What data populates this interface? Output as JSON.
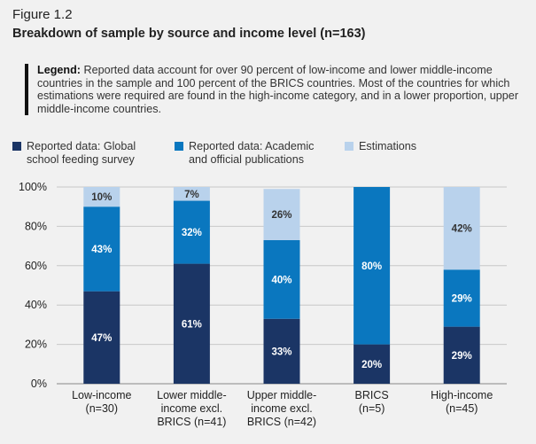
{
  "figure": {
    "label": "Figure 1.2",
    "title": "Breakdown of sample by source and income level (n=163)",
    "legend_lead": "Legend:",
    "legend_text": " Reported data account for over 90 percent of low-income and lower middle-income countries in the sample and 100 percent of the BRICS countries. Most of the countries for which estimations were required are found in the high-income category, and in a lower proportion, upper middle-income countries."
  },
  "colors": {
    "global_survey": "#1b3565",
    "academic": "#0a77bf",
    "estimations": "#b9d2ec",
    "grid": "#c8c8c8"
  },
  "chart_data": {
    "type": "bar",
    "stacked": true,
    "ylim": [
      0,
      100
    ],
    "yticks": [
      0,
      20,
      40,
      60,
      80,
      100
    ],
    "ytick_labels": [
      "0%",
      "20%",
      "40%",
      "60%",
      "80%",
      "100%"
    ],
    "categories": [
      [
        "Low-income",
        "(n=30)"
      ],
      [
        "Lower middle-",
        "income excl.",
        "BRICS (n=41)"
      ],
      [
        "Upper middle-",
        "income excl.",
        "BRICS (n=42)"
      ],
      [
        "BRICS",
        "(n=5)"
      ],
      [
        "High-income",
        "(n=45)"
      ]
    ],
    "series": [
      {
        "name": "Reported data: Global school feeding survey",
        "legend_lines": [
          "Reported data: Global",
          "school feeding survey"
        ],
        "color_key": "global_survey",
        "values": [
          47,
          61,
          33,
          20,
          29
        ],
        "labels": [
          "47%",
          "61%",
          "33%",
          "20%",
          "29%"
        ]
      },
      {
        "name": "Reported data: Academic and official publications",
        "legend_lines": [
          "Reported data: Academic",
          "and official publications"
        ],
        "color_key": "academic",
        "values": [
          43,
          32,
          40,
          80,
          29
        ],
        "labels": [
          "43%",
          "32%",
          "40%",
          "80%",
          "29%"
        ]
      },
      {
        "name": "Estimations",
        "legend_lines": [
          "Estimations"
        ],
        "color_key": "estimations",
        "values": [
          10,
          7,
          26,
          0,
          42
        ],
        "labels": [
          "10%",
          "7%",
          "26%",
          "",
          "42%"
        ]
      }
    ]
  }
}
